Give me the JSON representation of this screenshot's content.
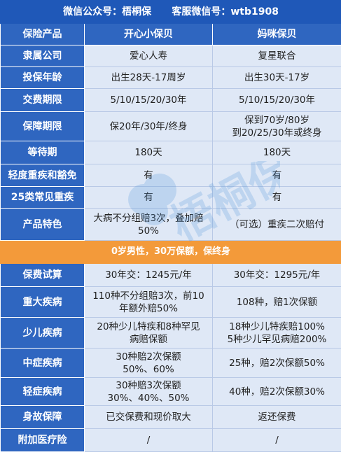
{
  "top_banner": "微信公众号：梧桐保      客服微信号：wtb1908",
  "header": {
    "label": "保险产品",
    "col1": "开心小保贝",
    "col2": "妈咪保贝"
  },
  "rows_a": [
    {
      "label": "隶属公司",
      "c1": "爱心人寿",
      "c2": "复星联合"
    },
    {
      "label": "投保年龄",
      "c1": "出生28天-17周岁",
      "c2": "出生30天-17岁"
    },
    {
      "label": "交费期限",
      "c1": "5/10/15/20/30年",
      "c2": "5/10/15/20/30年"
    },
    {
      "label": "保障期限",
      "c1": "保20年/30年/终身",
      "c2": "保到70岁/80岁\n到20/25/30年或终身"
    },
    {
      "label": "等待期",
      "c1": "180天",
      "c2": "180天"
    },
    {
      "label": "轻度重疾和豁免",
      "c1": "有",
      "c2": "有"
    },
    {
      "label": "25类常见重疾",
      "c1": "有",
      "c2": "有"
    },
    {
      "label": "产品特色",
      "c1": "大病不分组赔3次，叠加赔\n50%",
      "c2": "（可选）重疾二次赔付"
    }
  ],
  "mid_banner": "0岁男性，30万保额，保终身",
  "rows_b": [
    {
      "label": "保费试算",
      "c1": "30年交：1245元/年",
      "c2": "30年交：1295元/年"
    },
    {
      "label": "重大疾病",
      "c1": "110种不分组赔3次，前10\n年额外赔50%",
      "c2": "108种，赔1次保额"
    },
    {
      "label": "少儿疾病",
      "c1": "20种少儿特疾和8种罕见\n病赔保额",
      "c2": "18种少儿特疾赔100%\n5种少儿罕见病赔200%"
    },
    {
      "label": "中症疾病",
      "c1": "30种赔2次保额\n50%、60%",
      "c2": "25种，赔2次保额50%"
    },
    {
      "label": "轻症疾病",
      "c1": "30种赔3次保额\n30%、40%、50%",
      "c2": "40种，赔2次保额30%"
    },
    {
      "label": "身故保障",
      "c1": "已交保费和现价取大",
      "c2": "返还保费"
    },
    {
      "label": "附加医疗险",
      "c1": "/",
      "c2": "/"
    }
  ],
  "watermark_text": "梧桐保",
  "colors": {
    "label_bg": "#2f66c0",
    "cell_bg": "#dfe8f6",
    "banner_bg": "#f39a3a",
    "highlight": "#e01e1e"
  }
}
